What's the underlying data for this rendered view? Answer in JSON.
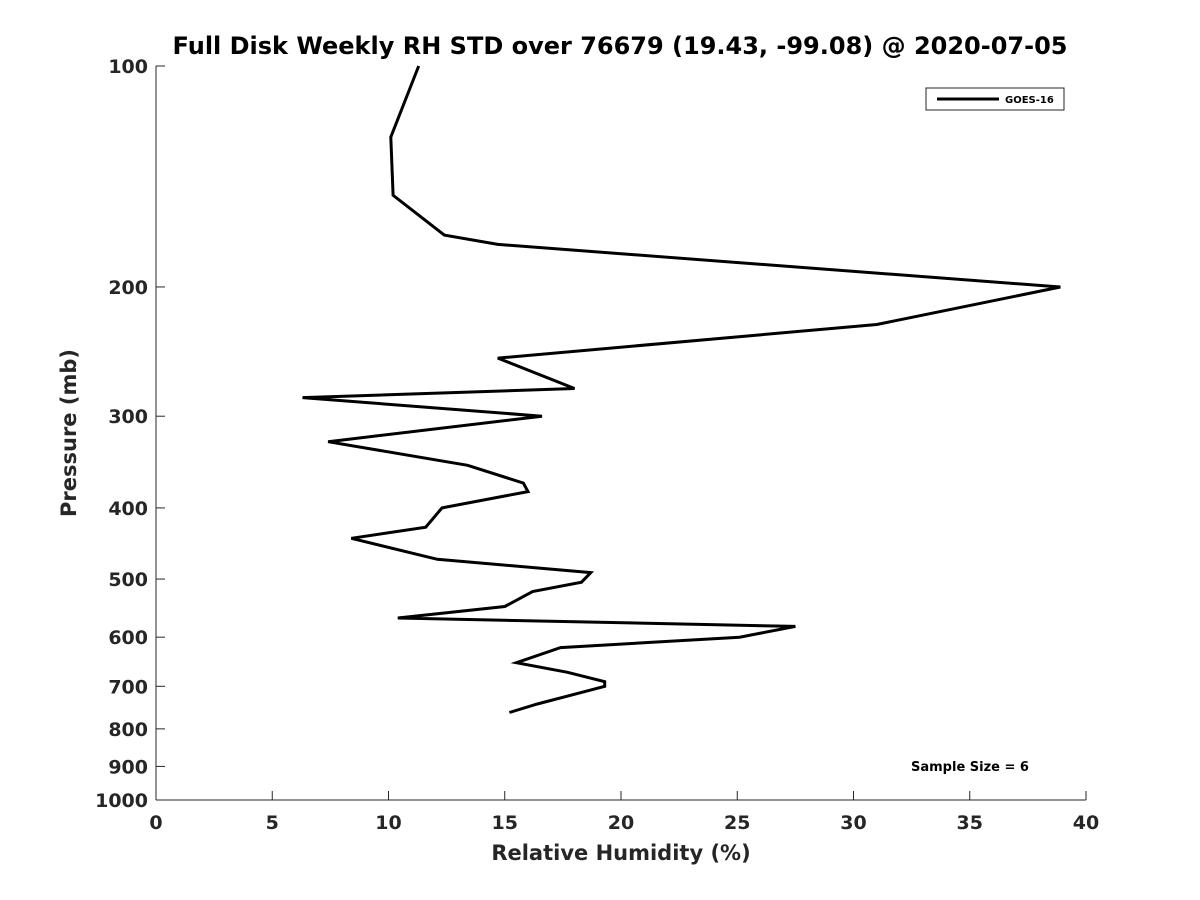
{
  "chart_data": {
    "type": "line",
    "title": "Full Disk Weekly RH STD over 76679 (19.43, -99.08) @ 2020-07-05",
    "xlabel": "Relative Humidity (%)",
    "ylabel": "Pressure (mb)",
    "xlim": [
      0,
      40
    ],
    "ylim": [
      100,
      1000
    ],
    "yscale": "log",
    "yreversed": true,
    "grid": false,
    "legend_position": "top-right",
    "x_ticks": [
      0,
      5,
      10,
      15,
      20,
      25,
      30,
      35,
      40
    ],
    "y_ticks": [
      100,
      200,
      300,
      400,
      500,
      600,
      700,
      800,
      900,
      1000
    ],
    "annotation": "Sample Size = 6",
    "series": [
      {
        "name": "GOES-16",
        "color": "#000000",
        "points": [
          {
            "x": 11.3,
            "p": 100
          },
          {
            "x": 10.1,
            "p": 125
          },
          {
            "x": 10.2,
            "p": 150
          },
          {
            "x": 12.4,
            "p": 170
          },
          {
            "x": 14.7,
            "p": 175
          },
          {
            "x": 38.9,
            "p": 200
          },
          {
            "x": 31.0,
            "p": 225
          },
          {
            "x": 14.7,
            "p": 250
          },
          {
            "x": 18.0,
            "p": 275
          },
          {
            "x": 6.3,
            "p": 283
          },
          {
            "x": 16.6,
            "p": 300
          },
          {
            "x": 7.4,
            "p": 325
          },
          {
            "x": 13.4,
            "p": 350
          },
          {
            "x": 15.8,
            "p": 370
          },
          {
            "x": 16.0,
            "p": 380
          },
          {
            "x": 12.3,
            "p": 400
          },
          {
            "x": 11.6,
            "p": 425
          },
          {
            "x": 8.4,
            "p": 440
          },
          {
            "x": 12.1,
            "p": 470
          },
          {
            "x": 18.7,
            "p": 490
          },
          {
            "x": 18.3,
            "p": 505
          },
          {
            "x": 16.2,
            "p": 520
          },
          {
            "x": 15.0,
            "p": 545
          },
          {
            "x": 10.4,
            "p": 565
          },
          {
            "x": 27.5,
            "p": 580
          },
          {
            "x": 25.1,
            "p": 600
          },
          {
            "x": 17.4,
            "p": 620
          },
          {
            "x": 15.5,
            "p": 650
          },
          {
            "x": 17.7,
            "p": 670
          },
          {
            "x": 19.3,
            "p": 690
          },
          {
            "x": 19.3,
            "p": 700
          },
          {
            "x": 18.2,
            "p": 715
          },
          {
            "x": 16.4,
            "p": 740
          },
          {
            "x": 15.2,
            "p": 760
          }
        ]
      }
    ]
  }
}
